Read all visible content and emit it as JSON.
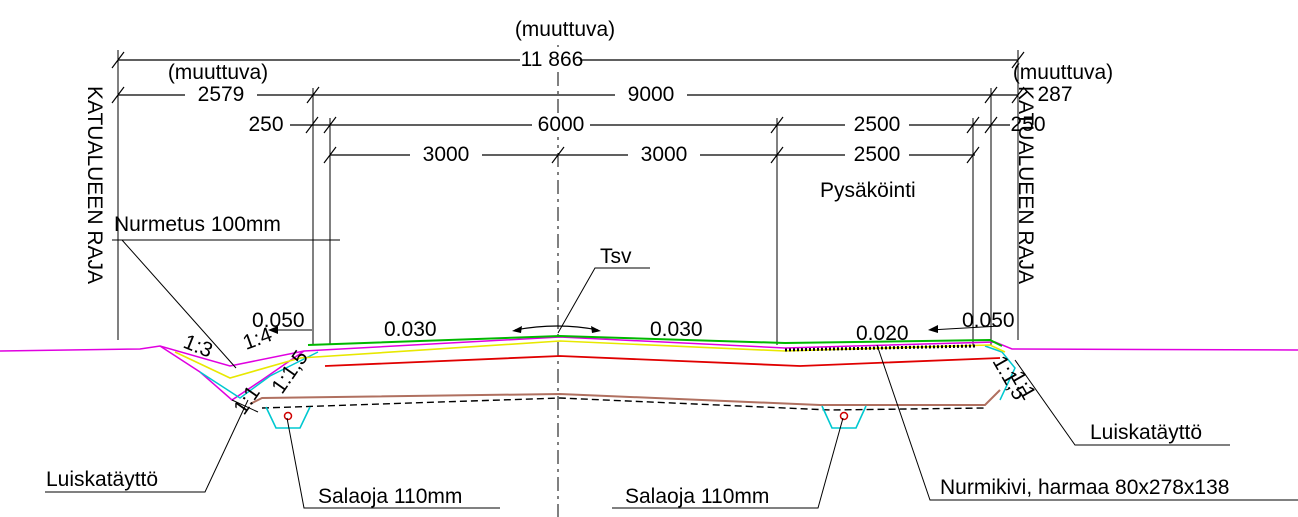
{
  "dimensions": {
    "total_label": "(muuttuva)",
    "total_value": "11 866",
    "left_label": "(muuttuva)",
    "left_value": "2579",
    "right_label": "(muuttuva)",
    "right_value": "287",
    "road_total": "9000",
    "left_edge_250": "250",
    "carriageway": "6000",
    "parking_width_top": "2500",
    "right_edge_250": "250",
    "lane_left": "3000",
    "lane_right": "3000",
    "parking_width": "2500"
  },
  "labels": {
    "boundary_left": "KATUALUEEN RAJA",
    "boundary_right": "KATUALUEEN RAJA",
    "parking": "Pysäköinti",
    "turf": "Nurmetus 100mm",
    "tsv": "Tsv",
    "slope_left_edge": "0.050",
    "slope_right_edge": "0.050",
    "slope_lane_left": "0.030",
    "slope_lane_right": "0.030",
    "slope_parking": "0.020",
    "ratio_1_3": "1:3",
    "ratio_1_4": "1:4",
    "ratio_left_15": "1:1,5",
    "ratio_left_1": "1:1",
    "ratio_right_15": "1:1,5",
    "ratio_right_1": "1:1",
    "fill_left": "Luiskatäyttö",
    "fill_right": "Luiskatäyttö",
    "drain_left": "Salaoja 110mm",
    "drain_right": "Salaoja 110mm",
    "paver": "Nurmikivi, harmaa 80x278x138"
  },
  "colors": {
    "ground": "#e000e0",
    "surface": "#00b800",
    "base_yellow": "#e8e800",
    "base_red": "#e00000",
    "fill_cyan": "#00c8d0",
    "subgrade": "#b07060",
    "drain_red": "#d00000"
  }
}
